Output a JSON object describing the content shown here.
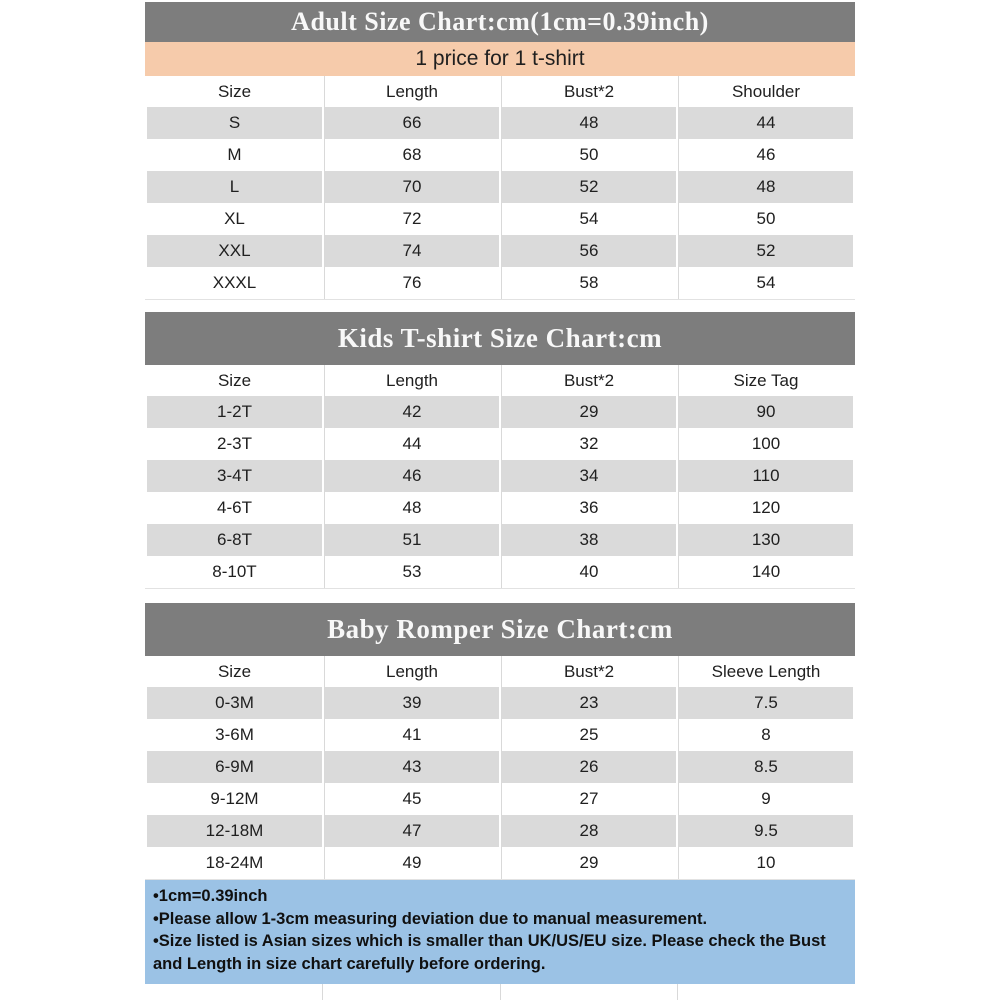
{
  "colors": {
    "section_banner_bg": "#7d7d7d",
    "section_banner_text": "#f8f8f8",
    "price_banner_bg": "#f6cbab",
    "row_alt_bg": "#dadada",
    "notes_bg": "#9bc2e5",
    "grid_line": "#d9d9d9",
    "text": "#202020"
  },
  "adult_chart": {
    "title": "Adult Size Chart:cm(1cm=0.39inch)",
    "price_note": "1 price for 1 t-shirt",
    "columns": [
      "Size",
      "Length",
      "Bust*2",
      "Shoulder"
    ],
    "rows": [
      [
        "S",
        "66",
        "48",
        "44"
      ],
      [
        "M",
        "68",
        "50",
        "46"
      ],
      [
        "L",
        "70",
        "52",
        "48"
      ],
      [
        "XL",
        "72",
        "54",
        "50"
      ],
      [
        "XXL",
        "74",
        "56",
        "52"
      ],
      [
        "XXXL",
        "76",
        "58",
        "54"
      ]
    ]
  },
  "kids_chart": {
    "title": "Kids T-shirt Size Chart:cm",
    "columns": [
      "Size",
      "Length",
      "Bust*2",
      "Size Tag"
    ],
    "rows": [
      [
        "1-2T",
        "42",
        "29",
        "90"
      ],
      [
        "2-3T",
        "44",
        "32",
        "100"
      ],
      [
        "3-4T",
        "46",
        "34",
        "110"
      ],
      [
        "4-6T",
        "48",
        "36",
        "120"
      ],
      [
        "6-8T",
        "51",
        "38",
        "130"
      ],
      [
        "8-10T",
        "53",
        "40",
        "140"
      ]
    ]
  },
  "baby_chart": {
    "title": "Baby Romper Size Chart:cm",
    "columns": [
      "Size",
      "Length",
      "Bust*2",
      "Sleeve Length"
    ],
    "rows": [
      [
        "0-3M",
        "39",
        "23",
        "7.5"
      ],
      [
        "3-6M",
        "41",
        "25",
        "8"
      ],
      [
        "6-9M",
        "43",
        "26",
        "8.5"
      ],
      [
        "9-12M",
        "45",
        "27",
        "9"
      ],
      [
        "12-18M",
        "47",
        "28",
        "9.5"
      ],
      [
        "18-24M",
        "49",
        "29",
        "10"
      ]
    ]
  },
  "notes": {
    "lines": [
      "•1cm=0.39inch",
      "•Please allow 1-3cm measuring deviation due to manual measurement.",
      "•Size listed is Asian sizes which is smaller than UK/US/EU size. Please check the Bust\nand Length in size chart carefully before ordering."
    ]
  }
}
